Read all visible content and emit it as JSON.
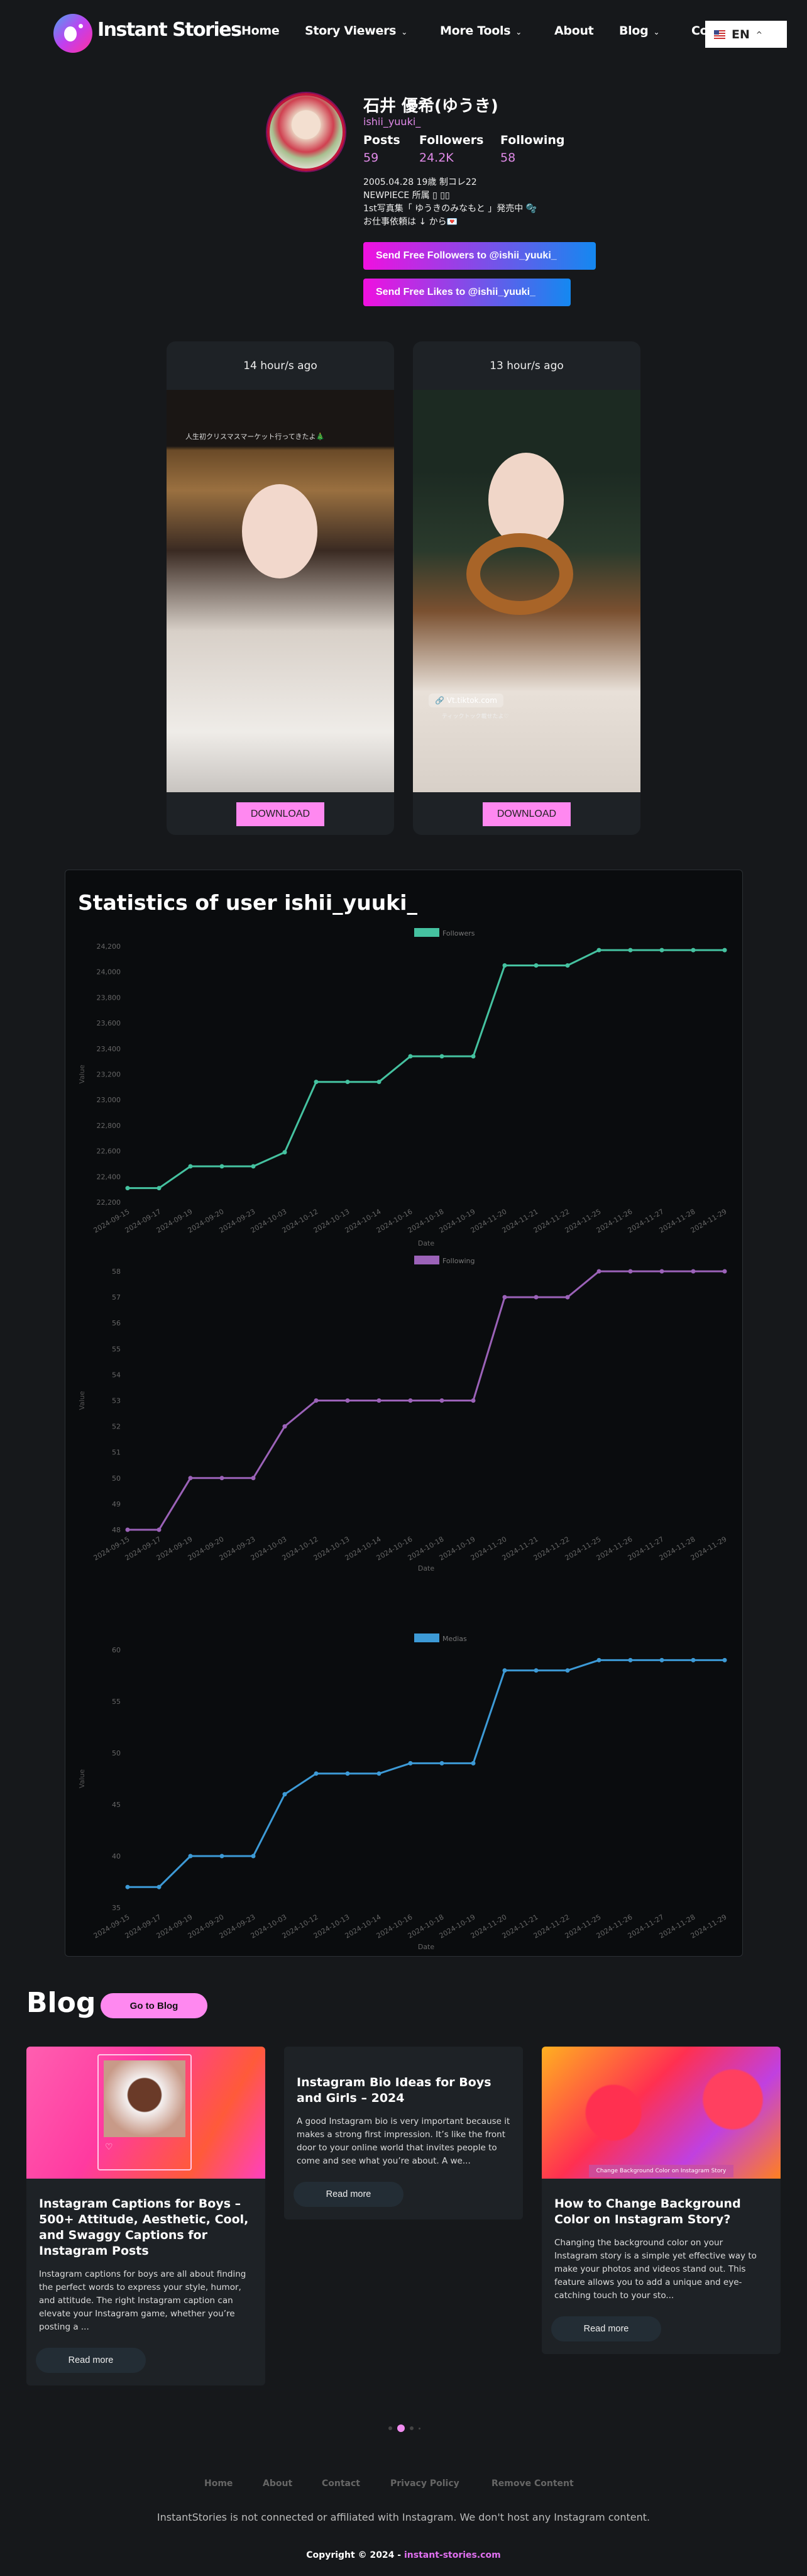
{
  "header": {
    "logo_text": "Instant Stories",
    "nav": [
      {
        "label": "Home"
      },
      {
        "label": "Story Viewers",
        "dropdown": true
      },
      {
        "label": "More Tools",
        "dropdown": true
      },
      {
        "label": "About"
      },
      {
        "label": "Blog",
        "dropdown": true
      },
      {
        "label": "Co"
      }
    ],
    "language": "EN"
  },
  "profile": {
    "name": "石井 優希(ゆうき)",
    "username": "ishii_yuuki_",
    "stats": [
      {
        "label": "Posts",
        "value": "59"
      },
      {
        "label": "Followers",
        "value": "24.2K"
      },
      {
        "label": "Following",
        "value": "58"
      }
    ],
    "bio": [
      "2005.04.28 19歳 制コレ22",
      "NEWPIECE 所属 ▯ ▯▯",
      "1st写真集「 ゆうきのみなもと 」発売中 🫧",
      "お仕事依頼は ↓ から💌"
    ],
    "buttons": {
      "followers": "Send Free Followers to @ishii_yuuki_",
      "likes": "Send Free Likes to @ishii_yuuki_"
    }
  },
  "stories": [
    {
      "time": "14 hour/s ago",
      "overlay": "人生初クリスマスマーケット行ってきたよ🎄",
      "download": "DOWNLOAD"
    },
    {
      "time": "13 hour/s ago",
      "link": "Vt.tiktok.com",
      "overlay": "ティックトック載せたよ♡",
      "download": "DOWNLOAD"
    }
  ],
  "stats_title": "Statistics of user ishii_yuuki_",
  "chart_data": [
    {
      "type": "line",
      "legend": "Followers",
      "color": "#45c2a0",
      "xlabel": "Date",
      "ylabel": "Value",
      "x": [
        "2024-09-15",
        "2024-09-17",
        "2024-09-19",
        "2024-09-20",
        "2024-09-23",
        "2024-10-03",
        "2024-10-12",
        "2024-10-13",
        "2024-10-14",
        "2024-10-16",
        "2024-10-18",
        "2024-10-19",
        "2024-11-20",
        "2024-11-21",
        "2024-11-22",
        "2024-11-25",
        "2024-11-26",
        "2024-11-27",
        "2024-11-28",
        "2024-11-29"
      ],
      "values": [
        22310,
        22310,
        22480,
        22480,
        22480,
        22590,
        23140,
        23140,
        23140,
        23340,
        23340,
        23340,
        24050,
        24050,
        24050,
        24170,
        24170,
        24170,
        24170,
        24170
      ],
      "ylim": [
        22200,
        24200
      ],
      "yticks": [
        "22,200",
        "22,400",
        "22,600",
        "22,800",
        "23,000",
        "23,200",
        "23,400",
        "23,600",
        "23,800",
        "24,000",
        "24,200"
      ]
    },
    {
      "type": "line",
      "legend": "Following",
      "color": "#9b62b8",
      "xlabel": "Date",
      "ylabel": "Value",
      "x": [
        "2024-09-15",
        "2024-09-17",
        "2024-09-19",
        "2024-09-20",
        "2024-09-23",
        "2024-10-03",
        "2024-10-12",
        "2024-10-13",
        "2024-10-14",
        "2024-10-16",
        "2024-10-18",
        "2024-10-19",
        "2024-11-20",
        "2024-11-21",
        "2024-11-22",
        "2024-11-25",
        "2024-11-26",
        "2024-11-27",
        "2024-11-28",
        "2024-11-29"
      ],
      "values": [
        48,
        48,
        50,
        50,
        50,
        52,
        53,
        53,
        53,
        53,
        53,
        53,
        57,
        57,
        57,
        58,
        58,
        58,
        58,
        58
      ],
      "ylim": [
        48,
        58
      ],
      "yticks": [
        "48",
        "49",
        "50",
        "51",
        "52",
        "53",
        "54",
        "55",
        "56",
        "57",
        "58"
      ]
    },
    {
      "type": "line",
      "legend": "Medias",
      "color": "#3d9ad6",
      "xlabel": "Date",
      "ylabel": "Value",
      "x": [
        "2024-09-15",
        "2024-09-17",
        "2024-09-19",
        "2024-09-20",
        "2024-09-23",
        "2024-10-03",
        "2024-10-12",
        "2024-10-13",
        "2024-10-14",
        "2024-10-16",
        "2024-10-18",
        "2024-10-19",
        "2024-11-20",
        "2024-11-21",
        "2024-11-22",
        "2024-11-25",
        "2024-11-26",
        "2024-11-27",
        "2024-11-28",
        "2024-11-29"
      ],
      "values": [
        37,
        37,
        40,
        40,
        40,
        46,
        48,
        48,
        48,
        49,
        49,
        49,
        58,
        58,
        58,
        59,
        59,
        59,
        59,
        59
      ],
      "ylim": [
        35,
        60
      ],
      "yticks": [
        "35",
        "40",
        "45",
        "50",
        "55",
        "60"
      ]
    }
  ],
  "blog": {
    "heading": "Blog",
    "go_button": "Go to Blog",
    "posts": [
      {
        "title": "Instagram Captions for Boys – 500+ Attitude, Aesthetic, Cool, and Swaggy Captions for Instagram Posts",
        "excerpt": "Instagram captions for boys are all about finding the perfect words to express your style, humor, and attitude. The right Instagram caption can elevate your Instagram game, whether you’re posting a ...",
        "read_more": "Read more"
      },
      {
        "title": "Instagram Bio Ideas for Boys and Girls – 2024",
        "excerpt": "A good Instagram bio is very important because it makes a strong first impression. It’s like the front door to your online world that invites people to come and see what you’re about. A we...",
        "read_more": "Read more"
      },
      {
        "title": "How to Change Background Color on Instagram Story?",
        "image_caption": "Change Background Color on Instagram Story",
        "excerpt": "Changing the background color on your Instagram story is a simple yet effective way to make your photos and videos stand out. This feature allows you to add a unique and eye-catching touch to your sto...",
        "read_more": "Read more"
      }
    ],
    "carousel_active": 1
  },
  "footer": {
    "links": [
      "Home",
      "About",
      "Contact",
      "Privacy Policy",
      "Remove Content"
    ],
    "disclaimer": "InstantStories is not connected or affiliated with Instagram. We don't host any Instagram content.",
    "copyright": "Copyright © 2024 - ",
    "site_link": "instant-stories.com"
  }
}
